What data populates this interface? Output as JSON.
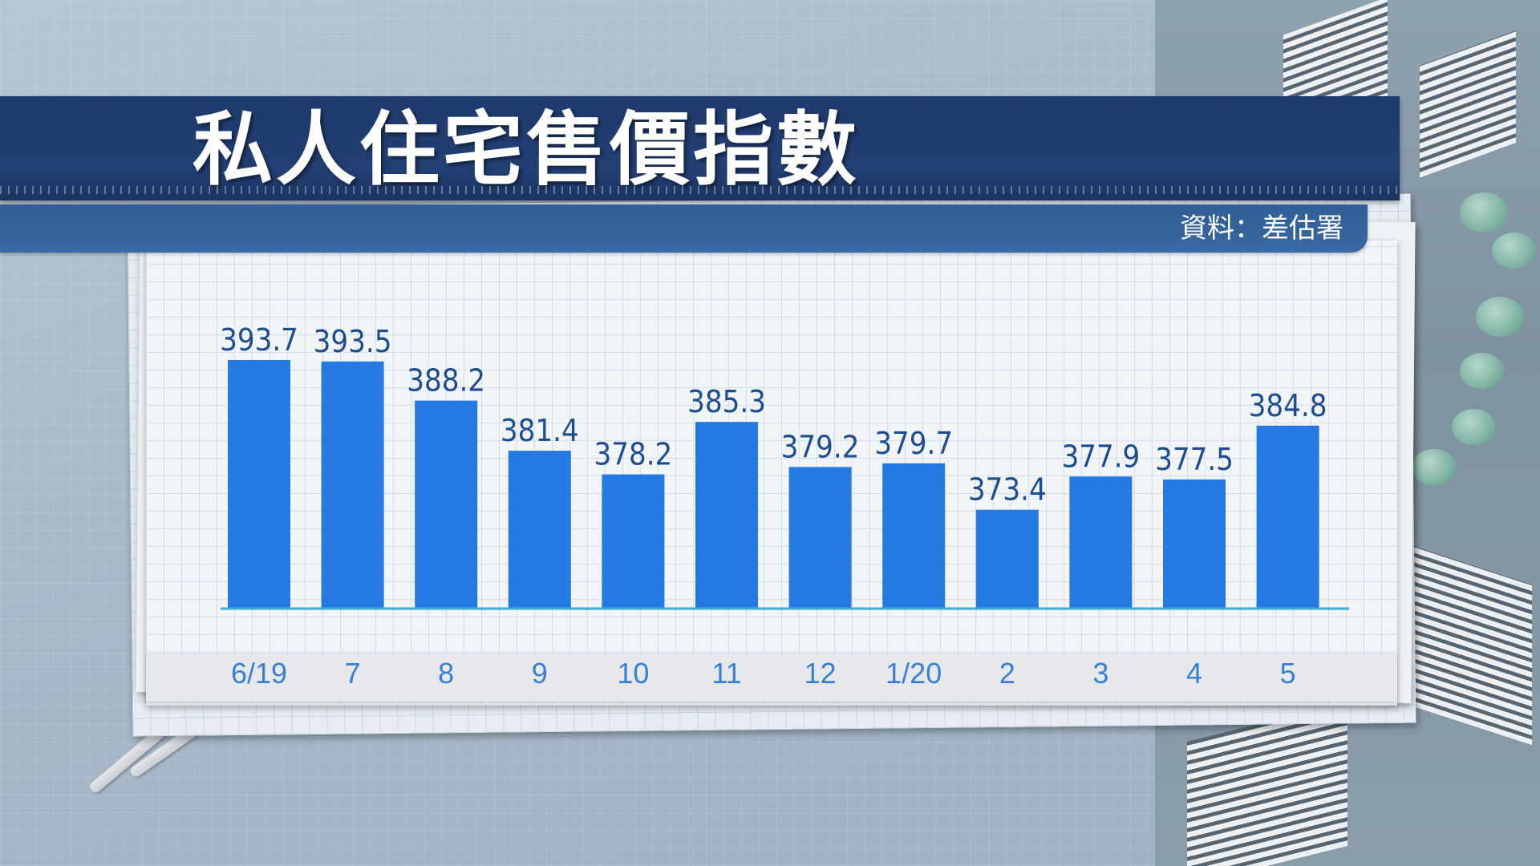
{
  "title": "私人住宅售價指數",
  "source": "資料：差估署",
  "colors": {
    "bar": "#2479e3",
    "banner": "#223f74",
    "source_bar": "#3a6aa3",
    "value_label": "#1d4c8f",
    "tick_label": "#3a7fd1"
  },
  "chart_data": {
    "type": "bar",
    "categories": [
      "6/19",
      "7",
      "8",
      "9",
      "10",
      "11",
      "12",
      "1/20",
      "2",
      "3",
      "4",
      "5"
    ],
    "values": [
      393.7,
      393.5,
      388.2,
      381.4,
      378.2,
      385.3,
      379.2,
      379.7,
      373.4,
      377.9,
      377.5,
      384.8
    ],
    "title": "私人住宅售價指數",
    "xlabel": "",
    "ylabel": "",
    "ylim": [
      360,
      395
    ],
    "grid": false,
    "data_labels": true
  }
}
